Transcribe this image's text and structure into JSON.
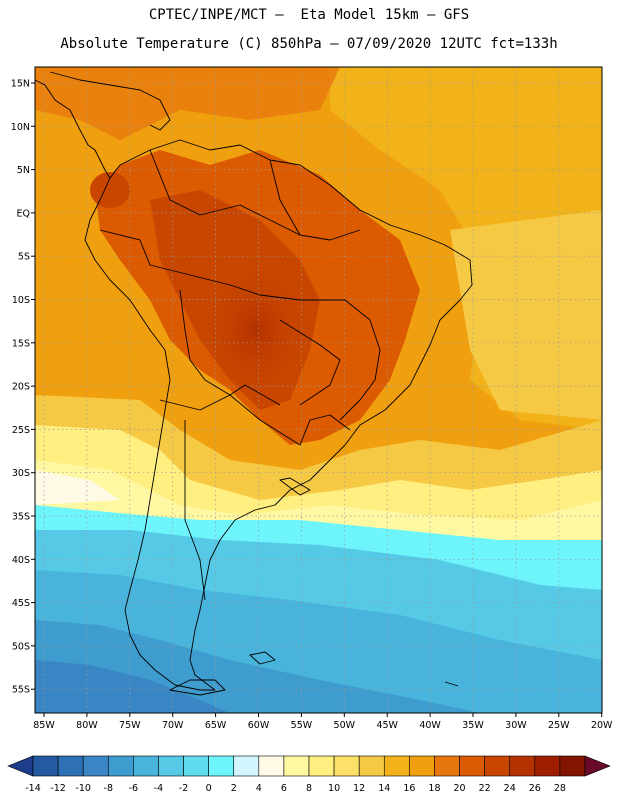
{
  "title": {
    "line1": "CPTEC/INPE/MCT –  Eta Model 15km – GFS",
    "line2": "Absolute Temperature (C) 850hPa – 07/09/2020 12UTC fct=133h"
  },
  "map": {
    "lat_labels": [
      "15N",
      "10N",
      "5N",
      "EQ",
      "5S",
      "10S",
      "15S",
      "20S",
      "25S",
      "30S",
      "35S",
      "40S",
      "45S",
      "50S",
      "55S"
    ],
    "lon_labels": [
      "85W",
      "80W",
      "75W",
      "70W",
      "65W",
      "60W",
      "55W",
      "50W",
      "45W",
      "40W",
      "35W",
      "30W",
      "25W",
      "20W"
    ]
  },
  "colorbar": {
    "labels": [
      "-14",
      "-12",
      "-10",
      "-8",
      "-6",
      "-4",
      "-2",
      "0",
      "2",
      "4",
      "6",
      "8",
      "10",
      "12",
      "14",
      "16",
      "18",
      "20",
      "22",
      "24",
      "26",
      "28"
    ],
    "colors": [
      "#1e3c8c",
      "#245aa0",
      "#2d70b4",
      "#3a86c4",
      "#3f9ccf",
      "#48b4dc",
      "#55c9e6",
      "#5fdcee",
      "#6ef5fb",
      "#d2f5ff",
      "#fffae6",
      "#fff8a2",
      "#ffee80",
      "#fde067",
      "#f6c944",
      "#f2b31a",
      "#f0a00e",
      "#e7770c",
      "#dc5a00",
      "#c84600",
      "#b43100",
      "#a01e00",
      "#821400",
      "#690a28"
    ]
  }
}
